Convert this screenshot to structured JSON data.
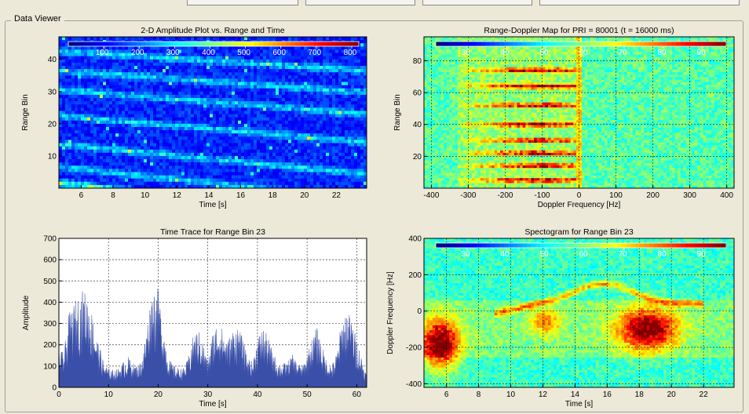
{
  "group_title": "Data Viewer",
  "chart_data": [
    {
      "type": "heatmap",
      "title": "2-D Amplitude Plot vs. Range and Time",
      "xlabel": "Time [s]",
      "ylabel": "Range Bin",
      "x_ticks": [
        "6",
        "8",
        "10",
        "12",
        "14",
        "16",
        "18",
        "20",
        "22"
      ],
      "y_ticks": [
        "10",
        "20",
        "30",
        "40"
      ],
      "xlim": [
        4.6,
        23.9
      ],
      "ylim": [
        0,
        47
      ],
      "colorbar_ticks": [
        "100",
        "200",
        "300",
        "400",
        "500",
        "600",
        "700",
        "800"
      ],
      "colorbar_range": [
        0,
        820
      ]
    },
    {
      "type": "heatmap",
      "title": "Range-Doppler Map for PRI = 80001 (t = 16000 ms)",
      "xlabel": "Doppler Frequency [Hz]",
      "ylabel": "Range Bin",
      "x_ticks": [
        "-400",
        "-300",
        "-200",
        "-100",
        "0",
        "100",
        "200",
        "300",
        "400"
      ],
      "y_ticks": [
        "20",
        "40",
        "60",
        "80"
      ],
      "xlim": [
        -420,
        420
      ],
      "ylim": [
        0,
        95
      ],
      "colorbar_ticks": [
        "30",
        "40",
        "50",
        "60",
        "70",
        "80",
        "90"
      ],
      "colorbar_range": [
        22,
        96
      ]
    },
    {
      "type": "area",
      "title": "Time Trace for Range Bin 23",
      "xlabel": "Time [s]",
      "ylabel": "Amplitude",
      "x_ticks": [
        "0",
        "10",
        "20",
        "30",
        "40",
        "50",
        "60"
      ],
      "y_ticks": [
        "0",
        "100",
        "200",
        "300",
        "400",
        "500",
        "600",
        "700"
      ],
      "xlim": [
        0,
        62
      ],
      "ylim": [
        0,
        700
      ],
      "series_color": "#3a4fa8",
      "envelope": {
        "t": [
          0,
          1,
          2,
          3,
          4,
          5,
          6,
          7,
          8,
          9,
          10,
          11,
          12,
          13,
          14,
          15,
          16,
          17,
          18,
          19,
          20,
          21,
          22,
          23,
          24,
          25,
          26,
          27,
          28,
          29,
          30,
          31,
          32,
          33,
          34,
          35,
          36,
          37,
          38,
          39,
          40,
          41,
          42,
          43,
          44,
          45,
          46,
          47,
          48,
          49,
          50,
          51,
          52,
          53,
          54,
          55,
          56,
          57,
          58,
          59,
          60,
          61
        ],
        "amplitude": [
          160,
          150,
          310,
          360,
          400,
          420,
          380,
          290,
          190,
          110,
          80,
          75,
          80,
          110,
          130,
          100,
          90,
          150,
          310,
          440,
          420,
          270,
          130,
          95,
          85,
          80,
          120,
          220,
          250,
          200,
          110,
          240,
          290,
          250,
          200,
          250,
          270,
          210,
          130,
          110,
          210,
          260,
          220,
          160,
          110,
          100,
          110,
          140,
          110,
          90,
          140,
          210,
          260,
          180,
          110,
          95,
          150,
          290,
          340,
          290,
          210,
          130
        ]
      }
    },
    {
      "type": "heatmap",
      "title": "Spectogram for Range Bin 23",
      "xlabel": "Time [s]",
      "ylabel": "Doppler Frequency [Hz]",
      "x_ticks": [
        "6",
        "8",
        "10",
        "12",
        "14",
        "16",
        "18",
        "20",
        "22"
      ],
      "y_ticks": [
        "-400",
        "-200",
        "0",
        "200",
        "400"
      ],
      "xlim": [
        4.6,
        23.9
      ],
      "ylim": [
        -420,
        400
      ],
      "colorbar_ticks": [
        "30",
        "40",
        "50",
        "60",
        "70",
        "80",
        "90"
      ],
      "colorbar_range": [
        22,
        96
      ]
    }
  ]
}
